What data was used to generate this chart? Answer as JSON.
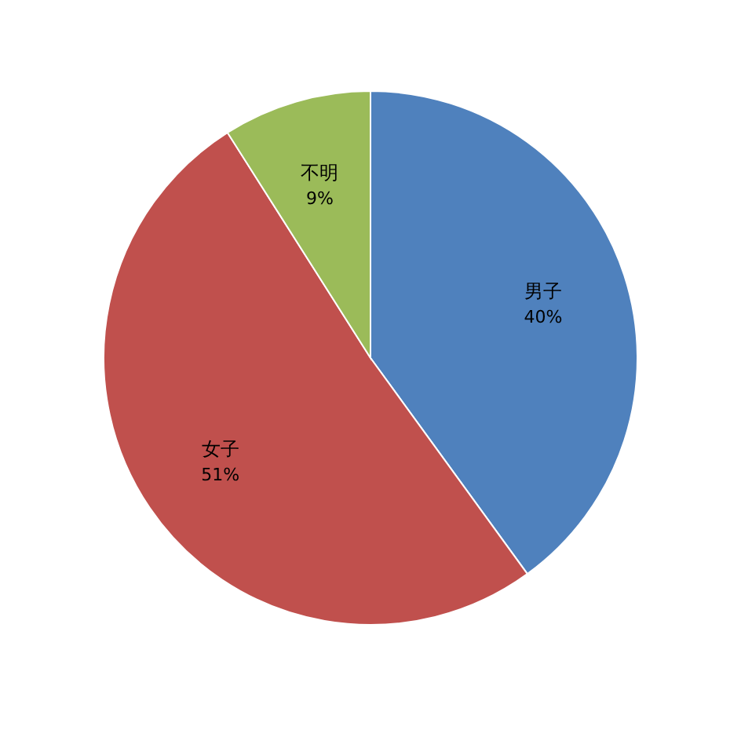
{
  "chart_data": {
    "type": "pie",
    "categories": [
      "男子",
      "女子",
      "不明"
    ],
    "values": [
      40,
      51,
      9
    ],
    "value_labels": [
      "40%",
      "51%",
      "9%"
    ],
    "colors": [
      "#4f81bd",
      "#c0504d",
      "#9bbb59"
    ]
  }
}
